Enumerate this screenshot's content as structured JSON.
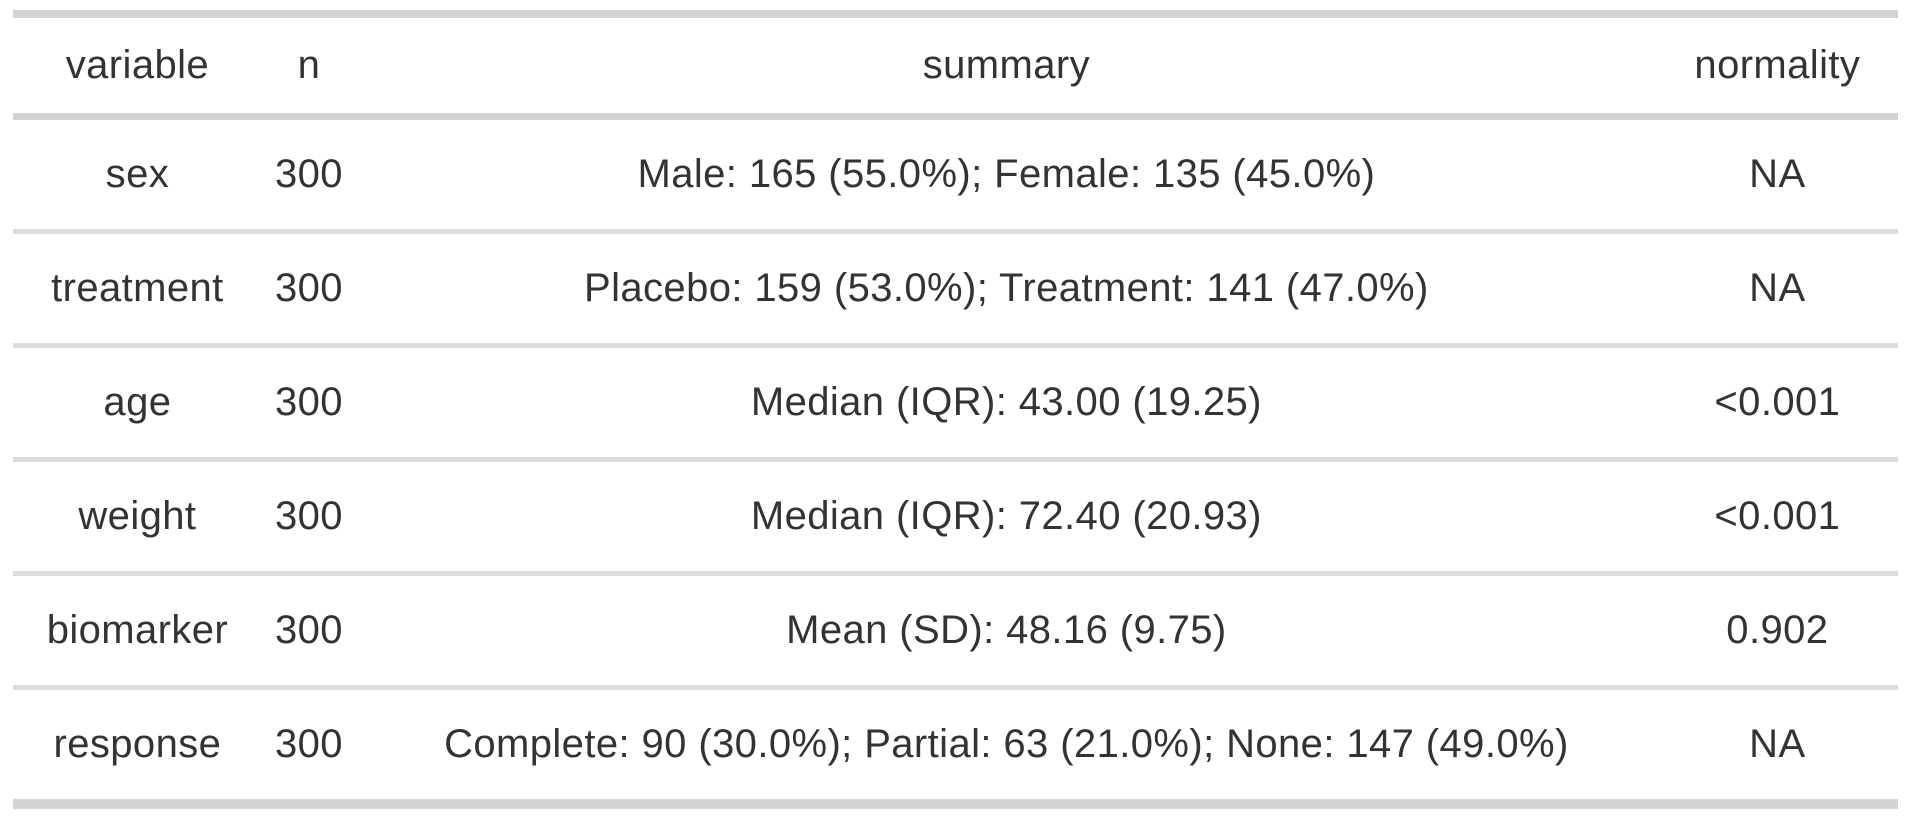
{
  "chart_data": {
    "type": "table",
    "title": "",
    "columns": [
      "variable",
      "n",
      "summary",
      "normality"
    ],
    "rows": [
      [
        "sex",
        "300",
        "Male: 165 (55.0%); Female: 135 (45.0%)",
        "NA"
      ],
      [
        "treatment",
        "300",
        "Placebo: 159 (53.0%); Treatment: 141 (47.0%)",
        "NA"
      ],
      [
        "age",
        "300",
        "Median (IQR): 43.00 (19.25)",
        "<0.001"
      ],
      [
        "weight",
        "300",
        "Median (IQR): 72.40 (20.93)",
        "<0.001"
      ],
      [
        "biomarker",
        "300",
        "Mean (SD): 48.16 (9.75)",
        "0.902"
      ],
      [
        "response",
        "300",
        "Complete: 90 (30.0%); Partial: 63 (21.0%); None: 147 (49.0%)",
        "NA"
      ]
    ],
    "layout": {
      "column_alignment": "center",
      "grid": "horizontal-rules-only",
      "header_weight": "regular"
    }
  },
  "colors": {
    "table-border": "#d3d3d3",
    "row-divider": "#dcdcdc",
    "text": "#333333",
    "background": "#ffffff"
  }
}
